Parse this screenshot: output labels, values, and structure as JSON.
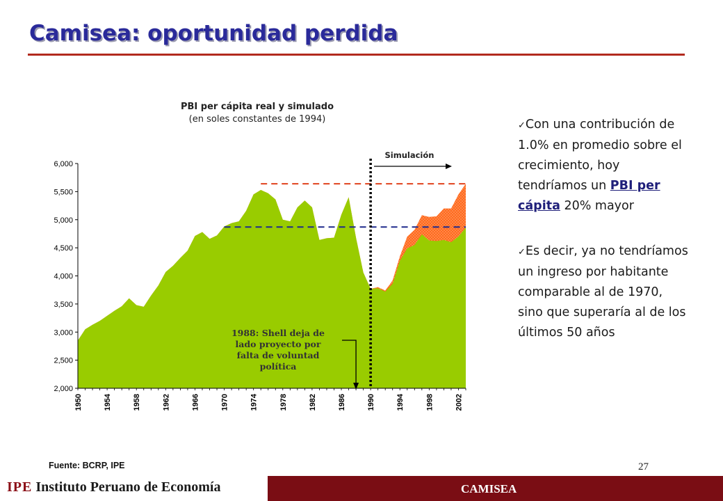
{
  "slide": {
    "title": "Camisea: oportunidad perdida",
    "page_number": "27",
    "source": "Fuente: BCRP, IPE",
    "footer_brand_acronym": "IPE",
    "footer_brand_name": "Instituto Peruano de Economía",
    "footer_center": "CAMISEA"
  },
  "bullets": {
    "b1_pre": "Con una contribución de 1.0% en promedio sobre el crecimiento, hoy tendríamos un ",
    "b1_highlight": "PBI per cápita",
    "b1_post": " 20% mayor",
    "b2": "Es decir, ya no tendríamos un ingreso por habitante comparable al de 1970, sino que superaría al de los últimos 50 años"
  },
  "chart_data": {
    "type": "area",
    "title": "PBI per cápita real y simulado",
    "subtitle": "(en soles constantes de 1994)",
    "ylim": [
      2000,
      6000
    ],
    "yticks": [
      "2,000",
      "2,500",
      "3,000",
      "3,500",
      "4,000",
      "4,500",
      "5,000",
      "5,500",
      "6,000"
    ],
    "xticks": [
      "1950",
      "1954",
      "1958",
      "1962",
      "1966",
      "1970",
      "1974",
      "1978",
      "1982",
      "1986",
      "1990",
      "1994",
      "1998",
      "2002"
    ],
    "x": [
      1950,
      1951,
      1952,
      1953,
      1954,
      1955,
      1956,
      1957,
      1958,
      1959,
      1960,
      1961,
      1962,
      1963,
      1964,
      1965,
      1966,
      1967,
      1968,
      1969,
      1970,
      1971,
      1972,
      1973,
      1974,
      1975,
      1976,
      1977,
      1978,
      1979,
      1980,
      1981,
      1982,
      1983,
      1984,
      1985,
      1986,
      1987,
      1988,
      1989,
      1990,
      1991,
      1992,
      1993,
      1994,
      1995,
      1996,
      1997,
      1998,
      1999,
      2000,
      2001,
      2002,
      2003
    ],
    "series": [
      {
        "values": [
          2850,
          3050,
          3130,
          3200,
          3290,
          3380,
          3460,
          3600,
          3480,
          3450,
          3650,
          3830,
          4070,
          4180,
          4320,
          4450,
          4710,
          4780,
          4660,
          4720,
          4880,
          4940,
          4970,
          5160,
          5450,
          5530,
          5470,
          5360,
          5000,
          4970,
          5220,
          5340,
          5220,
          4640,
          4670,
          4680,
          5090,
          5400,
          4680,
          4060,
          3770,
          3780,
          3720,
          3860,
          4270,
          4490,
          4550,
          4740,
          4630,
          4620,
          4640,
          4600,
          4700,
          4860
        ],
        "color": "#99cc00"
      },
      {
        "values": [
          2850,
          3050,
          3130,
          3200,
          3290,
          3380,
          3460,
          3600,
          3480,
          3450,
          3650,
          3830,
          4070,
          4180,
          4320,
          4450,
          4710,
          4780,
          4660,
          4720,
          4880,
          4940,
          4970,
          5160,
          5450,
          5530,
          5470,
          5360,
          5000,
          4970,
          5220,
          5340,
          5220,
          4640,
          4670,
          4680,
          5090,
          5400,
          4680,
          4060,
          3770,
          3800,
          3740,
          3920,
          4350,
          4700,
          4820,
          5080,
          5050,
          5060,
          5200,
          5200,
          5450,
          5640
        ],
        "color": "#ff6a1e"
      }
    ],
    "reference_lines": [
      {
        "value": 4870,
        "from": 1970,
        "to": 2003,
        "color": "#1f2a8c",
        "style": "dashed"
      },
      {
        "value": 5640,
        "from": 1975,
        "to": 2003,
        "color": "#e0421c",
        "style": "dashed"
      }
    ],
    "vertical_marker": {
      "x": 1990,
      "style": "dotted",
      "color": "#000000"
    },
    "annotations": {
      "simulation_label": "Simulación",
      "event_label": "1988: Shell deja de lado proyecto por falta de voluntad política",
      "event_year": 1988
    }
  }
}
